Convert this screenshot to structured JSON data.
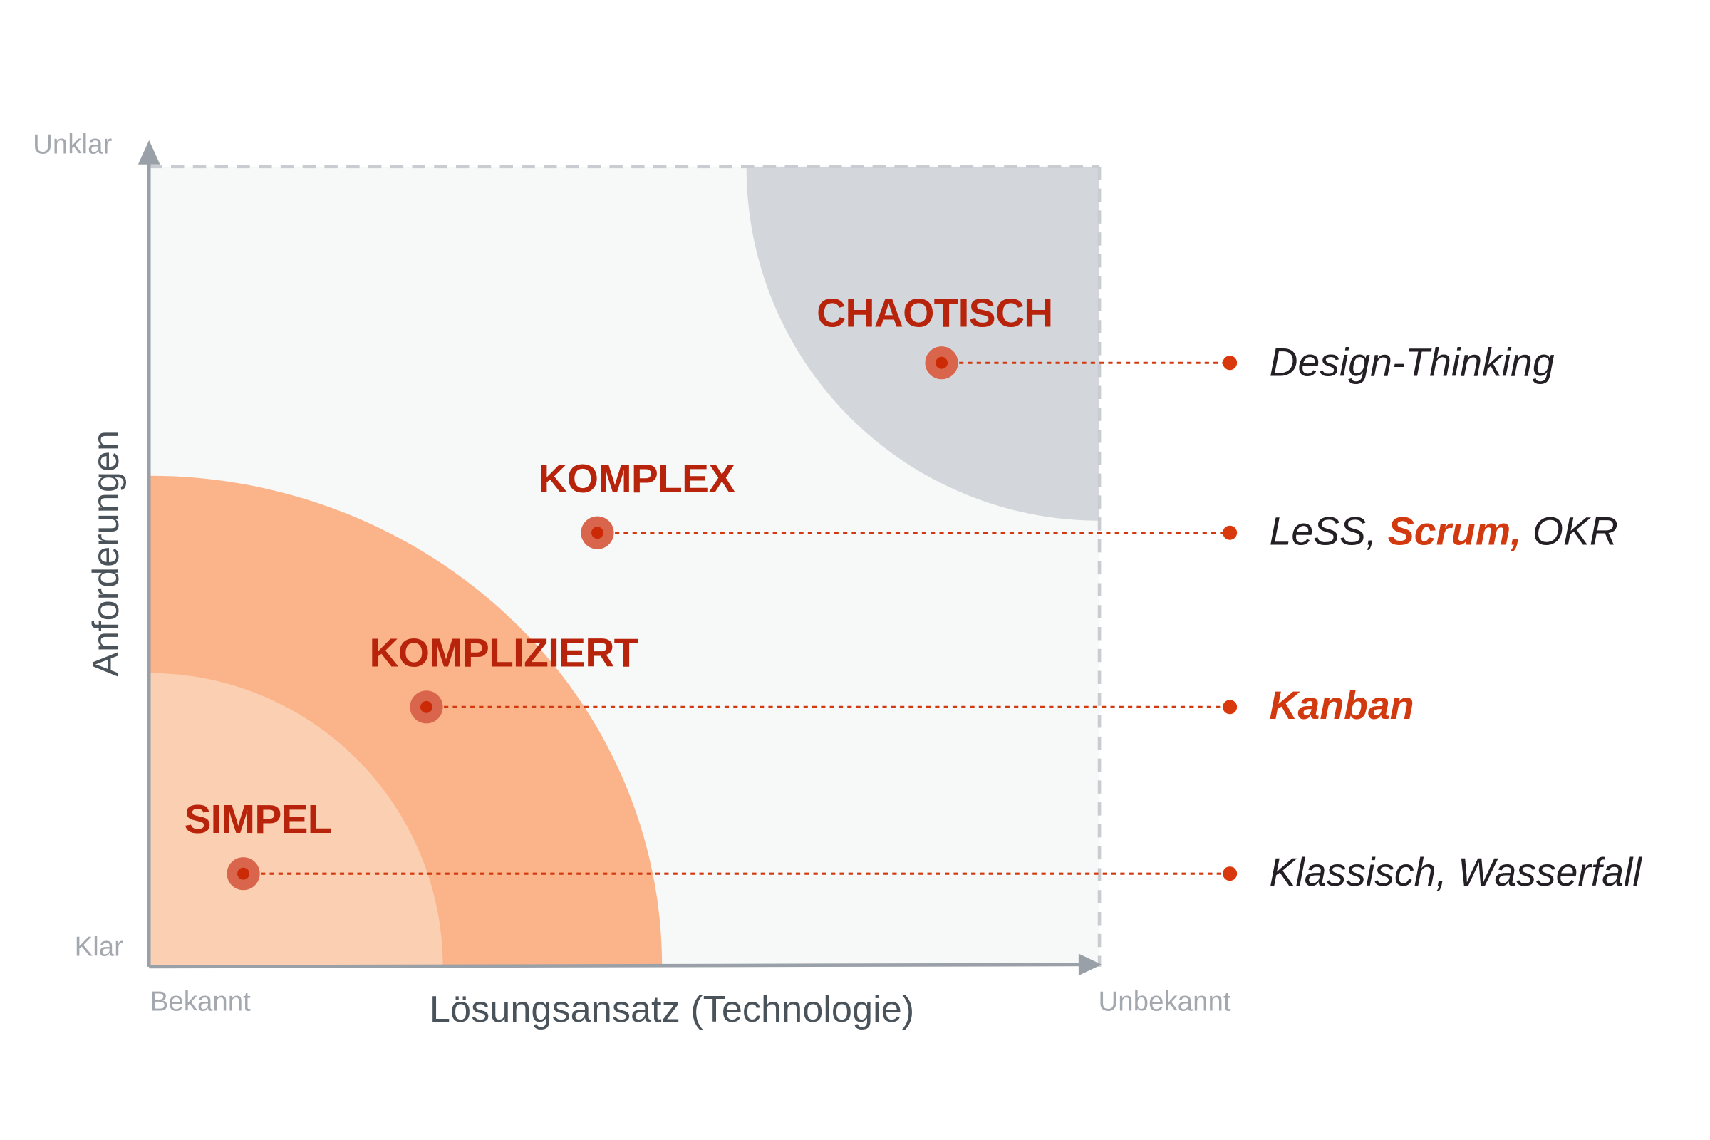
{
  "colors": {
    "plot_background": "#f7f8f8",
    "chaotic_zone": "#d3d7db",
    "complicated_zone": "#fbb38a",
    "simple_zone": "#fbcfb2",
    "domain_label": "#b8240b",
    "accent": "#d2390f",
    "axis": "#9aa0a8",
    "method_text": "#231f24"
  },
  "y_axis": {
    "title": "Anforderungen",
    "low": "Klar",
    "high": "Unklar"
  },
  "x_axis": {
    "title": "Lösungsansatz (Technologie)",
    "low": "Bekannt",
    "high": "Unbekannt"
  },
  "domains": [
    {
      "label": "SIMPEL",
      "methods": [
        {
          "text": "Klassisch, Wasserfall",
          "highlight": false
        }
      ]
    },
    {
      "label": "KOMPLIZIERT",
      "methods": [
        {
          "text": "Kanban",
          "highlight": true
        }
      ]
    },
    {
      "label": "KOMPLEX",
      "methods": [
        {
          "text": "LeSS, ",
          "highlight": false
        },
        {
          "text": "Scrum,",
          "highlight": true
        },
        {
          "text": " OKR",
          "highlight": false
        }
      ]
    },
    {
      "label": "CHAOTISCH",
      "methods": [
        {
          "text": "Design-Thinking",
          "highlight": false
        }
      ]
    }
  ]
}
